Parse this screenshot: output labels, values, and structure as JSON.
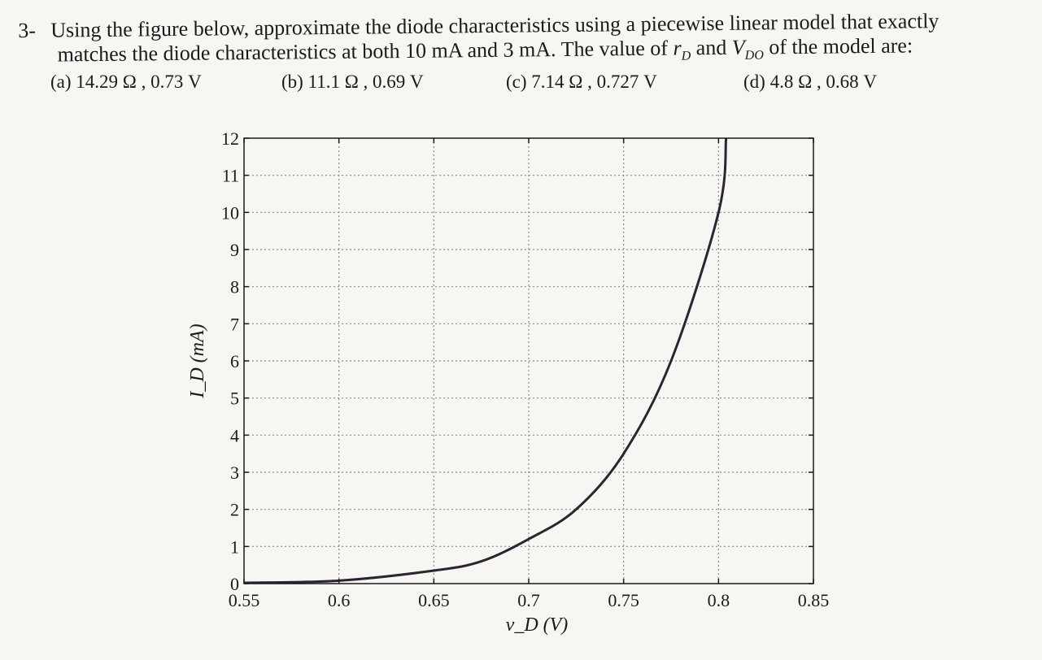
{
  "question": {
    "marker": "3-",
    "line1": "Using the figure below, approximate the diode characteristics using a piecewise linear model that exactly",
    "line2_pre": "matches the diode characteristics at both 10 mA and 3 mA. The value of ",
    "rD": "r",
    "rD_sub": "D",
    "and": " and ",
    "VDO": "V",
    "VDO_sub": "DO",
    "line2_post": " of the model are:"
  },
  "options": [
    {
      "label": "(a) 14.29 Ω , 0.73 V"
    },
    {
      "label": "(b) 11.1 Ω , 0.69 V"
    },
    {
      "label": "(c) 7.14 Ω , 0.727 V"
    },
    {
      "label": "(d) 4.8 Ω , 0.68 V"
    }
  ],
  "chart_data": {
    "type": "line",
    "xlabel": "v_D (V)",
    "ylabel": "I_D (mA)",
    "xlim": [
      0.55,
      0.85
    ],
    "ylim": [
      0,
      12
    ],
    "xticks": [
      "0.55",
      "0.6",
      "0.65",
      "0.7",
      "0.75",
      "0.8",
      "0.85"
    ],
    "yticks": [
      "0",
      "1",
      "2",
      "3",
      "4",
      "5",
      "6",
      "7",
      "8",
      "9",
      "10",
      "11",
      "12"
    ],
    "grid": true,
    "series": [
      {
        "values": [
          {
            "x": 0.55,
            "y": 0.02
          },
          {
            "x": 0.6,
            "y": 0.08
          },
          {
            "x": 0.65,
            "y": 0.35
          },
          {
            "x": 0.675,
            "y": 0.6
          },
          {
            "x": 0.7,
            "y": 1.2
          },
          {
            "x": 0.725,
            "y": 2.0
          },
          {
            "x": 0.75,
            "y": 3.5
          },
          {
            "x": 0.775,
            "y": 6.0
          },
          {
            "x": 0.8,
            "y": 10.0
          },
          {
            "x": 0.804,
            "y": 12.0
          }
        ]
      }
    ],
    "colors": {
      "curve": "#2a2530",
      "grid": "#8a8a8a",
      "axis": "#1a1a1a"
    }
  }
}
